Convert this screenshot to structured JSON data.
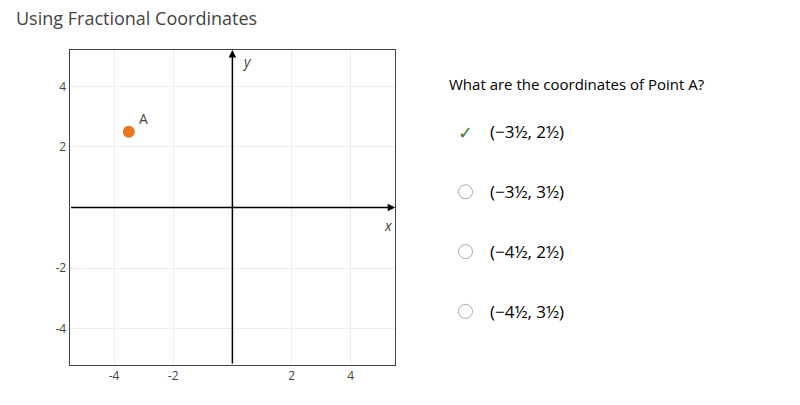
{
  "chart_data": {
    "type": "scatter",
    "title": "Using Fractional Coordinates",
    "xlabel": "x",
    "ylabel": "y",
    "x": [
      -3.5
    ],
    "values": [
      2.5
    ],
    "color": "#e87722",
    "xlim": [
      -5.5,
      5.5
    ],
    "ylim": [
      -5.2,
      5.2
    ],
    "xticks": [
      -4,
      -2,
      2,
      4
    ],
    "yticks": [
      -4,
      -2,
      2,
      4
    ],
    "grid": true,
    "annotations": [
      {
        "text": "A",
        "x": -3.5,
        "y": 2.5
      },
      {
        "text": "What are the coordinates of Point A?"
      },
      {
        "text": "✓",
        "color": "#3a7d3a"
      },
      {
        "text": "(−3½, 2½)"
      },
      {
        "text": "(−3½, 3½)"
      },
      {
        "text": "(−4½, 2½)"
      },
      {
        "text": "(−4½, 3½)"
      }
    ]
  }
}
